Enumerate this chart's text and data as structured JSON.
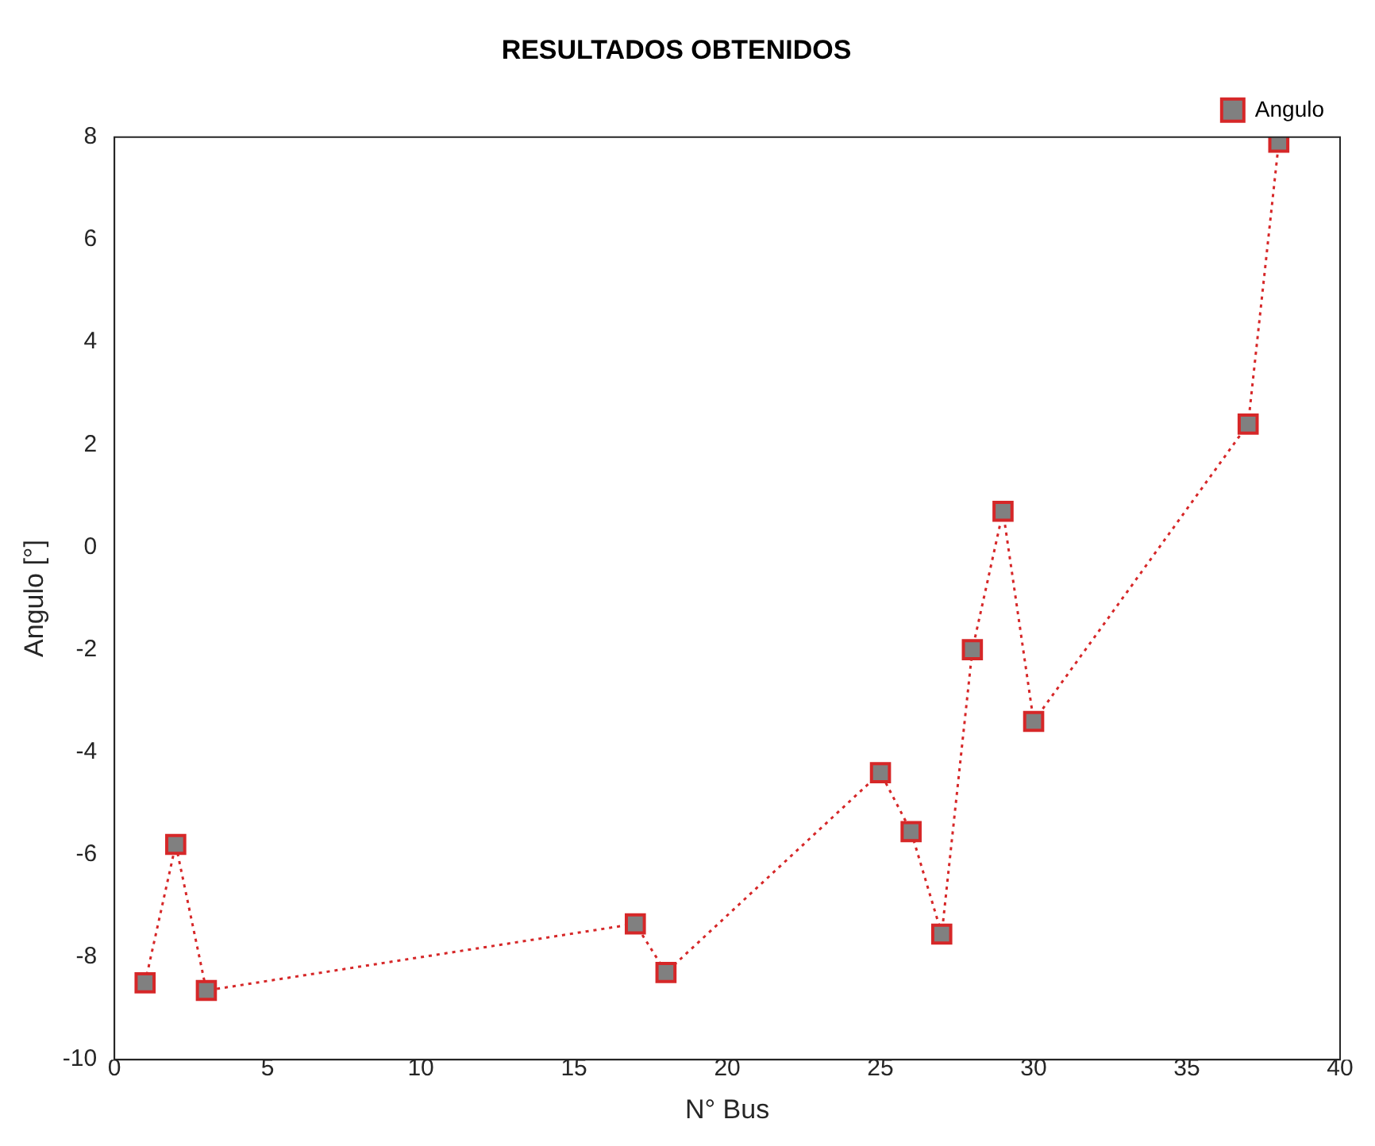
{
  "chart_data": {
    "type": "line",
    "title": "RESULTADOS OBTENIDOS",
    "xlabel": "N° Bus",
    "ylabel": "Angulo [°]",
    "x": [
      1,
      2,
      3,
      17,
      18,
      25,
      26,
      27,
      28,
      29,
      30,
      37,
      38
    ],
    "series": [
      {
        "name": "Angulo",
        "color": "#d62728",
        "values": [
          -8.5,
          -5.8,
          -8.65,
          -7.35,
          -8.3,
          -4.4,
          -5.55,
          -7.55,
          -2.0,
          0.7,
          -3.4,
          2.4,
          7.9
        ]
      }
    ],
    "xlim": [
      0,
      40
    ],
    "xticks": [
      0,
      5,
      10,
      15,
      20,
      25,
      30,
      35,
      40
    ],
    "ylim": [
      -10,
      8
    ],
    "yticks": [
      -10,
      -8,
      -6,
      -4,
      -2,
      0,
      2,
      4,
      6,
      8
    ],
    "grid": false,
    "legend": "top right",
    "marker": "square",
    "line_style": "dotted"
  }
}
